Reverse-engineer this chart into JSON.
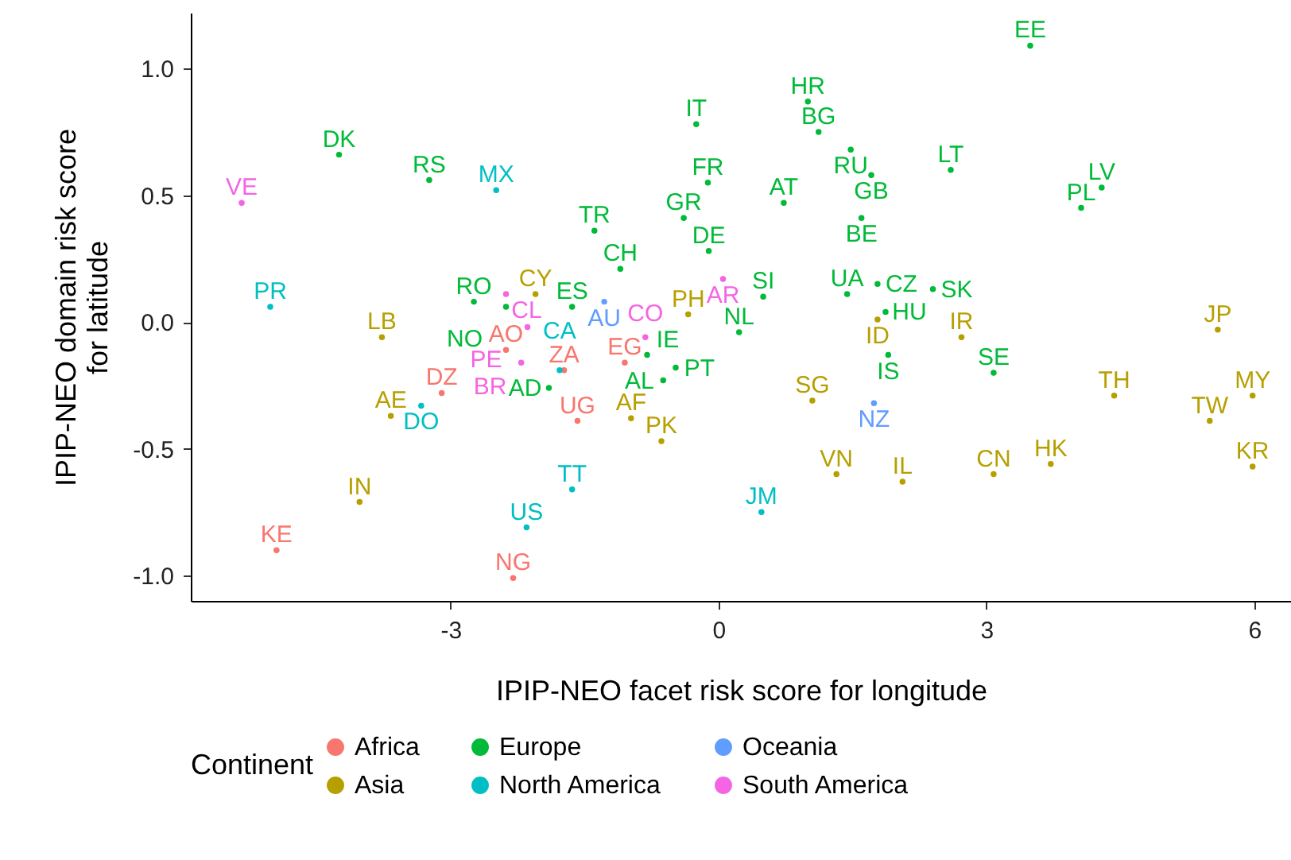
{
  "chart_data": {
    "type": "scatter",
    "xlabel": "IPIP-NEO facet risk score for longitude",
    "ylabel": "IPIP-NEO domain risk score\nfor latitude",
    "legend_title": "Continent",
    "legend": "bottom",
    "marker": "circle",
    "grid": false,
    "xlim": [
      -5.91,
      6.41
    ],
    "ylim": [
      -1.1,
      1.22
    ],
    "xticks": [
      -3,
      0,
      3,
      6
    ],
    "yticks": [
      {
        "value": -1,
        "label": "-1.0"
      },
      {
        "value": -0.5,
        "label": "-0.5"
      },
      {
        "value": 0,
        "label": "0.0"
      },
      {
        "value": 0.5,
        "label": "0.5"
      },
      {
        "value": 1,
        "label": "1.0"
      }
    ],
    "series": [
      {
        "name": "Africa",
        "color": "#f8766d",
        "x": [
          -4.95,
          -2.3,
          -3.1,
          -1.58,
          -1.73,
          -1.05,
          -2.38
        ],
        "values": [
          -0.9,
          -1.01,
          -0.28,
          -0.39,
          -0.19,
          -0.16,
          -0.11
        ],
        "value_labels": [
          "KE",
          "NG",
          "DZ",
          "UG",
          "ZA",
          "EG",
          "AO"
        ]
      },
      {
        "name": "Asia",
        "color": "#b79f00",
        "x": [
          -3.77,
          -3.67,
          -4.02,
          -2.05,
          -0.34,
          -0.98,
          -0.64,
          1.05,
          1.32,
          2.06,
          1.78,
          2.72,
          3.08,
          3.72,
          4.43,
          5.5,
          5.98,
          5.98,
          5.59
        ],
        "values": [
          -0.06,
          -0.37,
          -0.71,
          0.11,
          0.03,
          -0.38,
          -0.47,
          -0.31,
          -0.6,
          -0.63,
          0.01,
          -0.06,
          -0.6,
          -0.56,
          -0.29,
          -0.39,
          -0.29,
          -0.57,
          -0.03
        ],
        "value_labels": [
          "LB",
          "AE",
          "IN",
          "CY",
          "PH",
          "AF",
          "PK",
          "SG",
          "VN",
          "IL",
          "ID",
          "IR",
          "CN",
          "HK",
          "TH",
          "TW",
          "MY",
          "KR",
          "JP"
        ]
      },
      {
        "name": "Europe",
        "color": "#00ba38",
        "x": [
          -4.25,
          -3.24,
          -1.39,
          -1.1,
          -0.25,
          -0.12,
          -0.39,
          -0.11,
          0.5,
          0.23,
          -2.74,
          -2.38,
          -1.64,
          -1.9,
          -0.8,
          -0.48,
          -0.62,
          1.0,
          1.12,
          1.48,
          1.71,
          2.6,
          0.73,
          1.6,
          1.44,
          1.78,
          1.87,
          2.4,
          1.9,
          3.08,
          3.49,
          4.29,
          4.06
        ],
        "values": [
          0.66,
          0.56,
          0.36,
          0.21,
          0.78,
          0.55,
          0.41,
          0.28,
          0.1,
          -0.04,
          0.08,
          0.06,
          0.06,
          -0.26,
          -0.13,
          -0.18,
          -0.23,
          0.87,
          0.75,
          0.68,
          0.58,
          0.6,
          0.47,
          0.41,
          0.11,
          0.15,
          0.04,
          0.13,
          -0.13,
          -0.2,
          1.09,
          0.53,
          0.45
        ],
        "value_labels": [
          "DK",
          "RS",
          "TR",
          "CH",
          "IT",
          "FR",
          "GR",
          "DE",
          "SI",
          "NL",
          "RO",
          "NO",
          "ES",
          "AD",
          "IE",
          "PT",
          "AL",
          "HR",
          "BG",
          "RU",
          "GB",
          "LT",
          "AT",
          "BE",
          "UA",
          "CZ",
          "HU",
          "SK",
          "IS",
          "SE",
          "EE",
          "LV",
          "PL"
        ]
      },
      {
        "name": "North America",
        "color": "#00bfc4",
        "x": [
          -5.02,
          -2.49,
          -3.33,
          -1.78,
          -1.64,
          -2.15,
          0.48
        ],
        "values": [
          0.06,
          0.52,
          -0.33,
          -0.19,
          -0.66,
          -0.81,
          -0.75
        ],
        "value_labels": [
          "PR",
          "MX",
          "DO",
          "CA",
          "TT",
          "US",
          "JM"
        ]
      },
      {
        "name": "Oceania",
        "color": "#619cff",
        "x": [
          -1.28,
          1.74
        ],
        "values": [
          0.08,
          -0.32
        ],
        "value_labels": [
          "AU",
          "NZ"
        ]
      },
      {
        "name": "South America",
        "color": "#f564e3",
        "x": [
          -5.34,
          -2.38,
          -2.14,
          -2.21,
          -0.82,
          0.05
        ],
        "values": [
          0.47,
          0.11,
          -0.02,
          -0.16,
          -0.06,
          0.17
        ],
        "value_labels": [
          "VE",
          "CL",
          "PE",
          "BR",
          "CO",
          "AR"
        ]
      }
    ]
  }
}
